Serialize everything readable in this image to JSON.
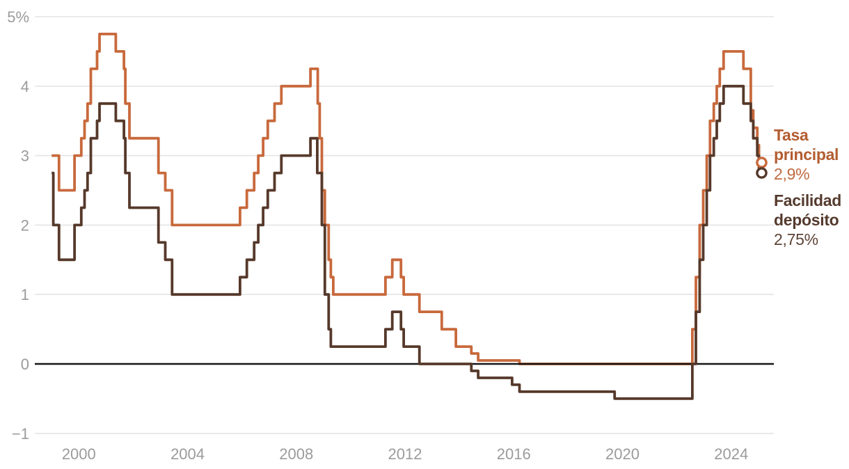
{
  "chart_data": {
    "type": "line",
    "step": true,
    "title": "",
    "xlabel": "",
    "ylabel": "",
    "xlim": [
      1999.0,
      2025.4
    ],
    "ylim": [
      -1,
      5
    ],
    "grid": true,
    "legend_position": "right",
    "x_end": 2025.12,
    "x_ticks": [
      {
        "value": 2000,
        "label": "2000"
      },
      {
        "value": 2004,
        "label": "2004"
      },
      {
        "value": 2008,
        "label": "2008"
      },
      {
        "value": 2012,
        "label": "2012"
      },
      {
        "value": 2016,
        "label": "2016"
      },
      {
        "value": 2020,
        "label": "2020"
      },
      {
        "value": 2024,
        "label": "2024"
      }
    ],
    "y_ticks": [
      {
        "value": 5,
        "label": "5%"
      },
      {
        "value": 4,
        "label": "4"
      },
      {
        "value": 3,
        "label": "3"
      },
      {
        "value": 2,
        "label": "2"
      },
      {
        "value": 1,
        "label": "1"
      },
      {
        "value": 0,
        "label": "0"
      },
      {
        "value": -1,
        "label": "−1"
      }
    ],
    "series": [
      {
        "name": "Tasa principal",
        "color": "#c8693c",
        "end_value": "2,9%",
        "points": [
          [
            1999.0,
            3.0
          ],
          [
            1999.27,
            2.5
          ],
          [
            1999.84,
            3.0
          ],
          [
            2000.09,
            3.25
          ],
          [
            2000.21,
            3.5
          ],
          [
            2000.32,
            3.75
          ],
          [
            2000.44,
            4.25
          ],
          [
            2000.67,
            4.5
          ],
          [
            2000.76,
            4.75
          ],
          [
            2001.36,
            4.5
          ],
          [
            2001.66,
            4.25
          ],
          [
            2001.71,
            3.75
          ],
          [
            2001.86,
            3.25
          ],
          [
            2002.93,
            2.75
          ],
          [
            2003.18,
            2.5
          ],
          [
            2003.43,
            2.0
          ],
          [
            2005.93,
            2.25
          ],
          [
            2006.18,
            2.5
          ],
          [
            2006.45,
            2.75
          ],
          [
            2006.6,
            3.0
          ],
          [
            2006.78,
            3.25
          ],
          [
            2006.95,
            3.5
          ],
          [
            2007.2,
            3.75
          ],
          [
            2007.45,
            4.0
          ],
          [
            2008.52,
            4.25
          ],
          [
            2008.79,
            3.75
          ],
          [
            2008.86,
            3.25
          ],
          [
            2008.94,
            2.5
          ],
          [
            2009.05,
            2.0
          ],
          [
            2009.19,
            1.5
          ],
          [
            2009.27,
            1.25
          ],
          [
            2009.36,
            1.0
          ],
          [
            2011.28,
            1.25
          ],
          [
            2011.53,
            1.5
          ],
          [
            2011.85,
            1.25
          ],
          [
            2011.95,
            1.0
          ],
          [
            2012.53,
            0.75
          ],
          [
            2013.35,
            0.5
          ],
          [
            2013.87,
            0.25
          ],
          [
            2014.44,
            0.15
          ],
          [
            2014.69,
            0.05
          ],
          [
            2016.21,
            0.0
          ],
          [
            2022.57,
            0.5
          ],
          [
            2022.7,
            1.25
          ],
          [
            2022.84,
            2.0
          ],
          [
            2022.97,
            2.5
          ],
          [
            2023.1,
            3.0
          ],
          [
            2023.22,
            3.5
          ],
          [
            2023.36,
            3.75
          ],
          [
            2023.47,
            4.0
          ],
          [
            2023.58,
            4.25
          ],
          [
            2023.72,
            4.5
          ],
          [
            2024.45,
            4.25
          ],
          [
            2024.72,
            3.65
          ],
          [
            2024.81,
            3.4
          ],
          [
            2024.96,
            3.15
          ],
          [
            2025.02,
            2.9
          ]
        ]
      },
      {
        "name": "Facilidad depósito",
        "color": "#56392b",
        "end_value": "2,75%",
        "points": [
          [
            1999.0,
            2.75
          ],
          [
            1999.06,
            2.0
          ],
          [
            1999.27,
            1.5
          ],
          [
            1999.84,
            2.0
          ],
          [
            2000.09,
            2.25
          ],
          [
            2000.21,
            2.5
          ],
          [
            2000.32,
            2.75
          ],
          [
            2000.44,
            3.25
          ],
          [
            2000.67,
            3.5
          ],
          [
            2000.76,
            3.75
          ],
          [
            2001.36,
            3.5
          ],
          [
            2001.66,
            3.25
          ],
          [
            2001.71,
            2.75
          ],
          [
            2001.86,
            2.25
          ],
          [
            2002.93,
            1.75
          ],
          [
            2003.18,
            1.5
          ],
          [
            2003.43,
            1.0
          ],
          [
            2005.93,
            1.25
          ],
          [
            2006.18,
            1.5
          ],
          [
            2006.45,
            1.75
          ],
          [
            2006.6,
            2.0
          ],
          [
            2006.78,
            2.25
          ],
          [
            2006.95,
            2.5
          ],
          [
            2007.2,
            2.75
          ],
          [
            2007.45,
            3.0
          ],
          [
            2008.52,
            3.25
          ],
          [
            2008.77,
            2.75
          ],
          [
            2008.94,
            2.0
          ],
          [
            2009.05,
            1.0
          ],
          [
            2009.19,
            0.5
          ],
          [
            2009.27,
            0.25
          ],
          [
            2011.28,
            0.5
          ],
          [
            2011.53,
            0.75
          ],
          [
            2011.85,
            0.5
          ],
          [
            2011.95,
            0.25
          ],
          [
            2012.53,
            0.0
          ],
          [
            2014.44,
            -0.1
          ],
          [
            2014.69,
            -0.2
          ],
          [
            2015.94,
            -0.3
          ],
          [
            2016.21,
            -0.4
          ],
          [
            2019.71,
            -0.5
          ],
          [
            2022.57,
            0.0
          ],
          [
            2022.7,
            0.75
          ],
          [
            2022.84,
            1.5
          ],
          [
            2022.97,
            2.0
          ],
          [
            2023.1,
            2.5
          ],
          [
            2023.22,
            3.0
          ],
          [
            2023.36,
            3.25
          ],
          [
            2023.47,
            3.5
          ],
          [
            2023.58,
            3.75
          ],
          [
            2023.72,
            4.0
          ],
          [
            2024.45,
            3.75
          ],
          [
            2024.72,
            3.5
          ],
          [
            2024.81,
            3.25
          ],
          [
            2024.96,
            3.0
          ],
          [
            2025.02,
            2.75
          ]
        ]
      }
    ]
  },
  "legend": {
    "main_rate": {
      "line1": "Tasa",
      "line2": "principal",
      "value": "2,9%",
      "name_color": "#b35d30",
      "value_color": "#c06a40"
    },
    "deposit": {
      "line1": "Facilidad",
      "line2": "depósito",
      "value": "2,75%",
      "name_color": "#553b2e",
      "value_color": "#5e4437"
    }
  },
  "colors": {
    "grid": "#e4e4e4",
    "zero_axis": "#161616",
    "tick_text": "#9b9b9b",
    "background": "#ffffff",
    "main_line": "#c8693c",
    "deposit_line": "#56392b"
  }
}
